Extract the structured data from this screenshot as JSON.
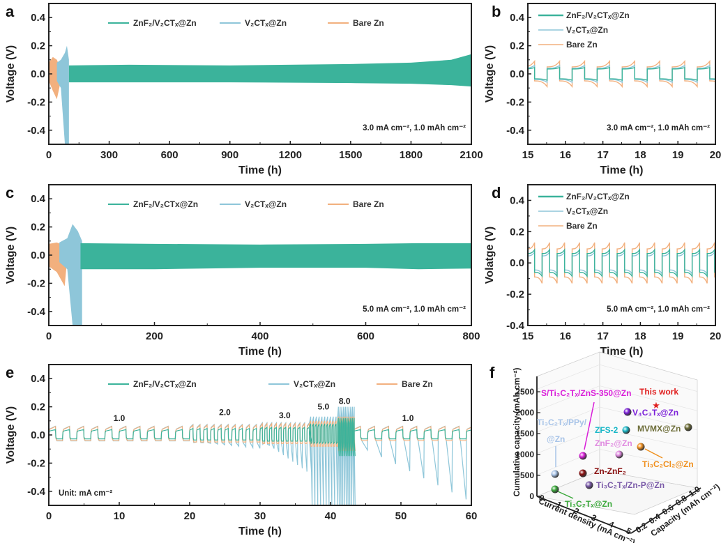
{
  "colors": {
    "znf2": "#3bb39b",
    "v2ct": "#8ec6d9",
    "bare": "#f2b07e",
    "axis": "#222222"
  },
  "chart_data": [
    {
      "panel": "a",
      "type": "line",
      "xlabel": "Time (h)",
      "ylabel": "Voltage (V)",
      "xlim": [
        0,
        2100
      ],
      "ylim": [
        -0.5,
        0.5
      ],
      "xticks": [
        "0",
        "300",
        "600",
        "900",
        "1200",
        "1500",
        "1800",
        "2100"
      ],
      "yticks": [
        "-0.4",
        "-0.2",
        "0.0",
        "0.2",
        "0.4"
      ],
      "legend_position": "top",
      "annotation": "3.0 mA cm⁻², 1.0 mAh cm⁻²",
      "series": [
        {
          "name": "ZnF₂/V₂CTₓ@Zn",
          "key": "znf2",
          "kind": "band",
          "x": [
            100,
            400,
            900,
            1500,
            1800,
            2000,
            2100
          ],
          "upper": [
            0.06,
            0.065,
            0.06,
            0.07,
            0.08,
            0.1,
            0.14
          ],
          "lower": [
            -0.06,
            -0.06,
            -0.06,
            -0.065,
            -0.07,
            -0.08,
            -0.09
          ]
        },
        {
          "name": "V₂CTₓ@Zn",
          "key": "v2ct",
          "kind": "band",
          "x": [
            40,
            60,
            80,
            90,
            100
          ],
          "upper": [
            0.08,
            0.1,
            0.15,
            0.2,
            0.1
          ],
          "lower": [
            -0.05,
            -0.1,
            -0.5,
            -0.5,
            -0.5
          ]
        },
        {
          "name": "Bare Zn",
          "key": "bare",
          "kind": "band",
          "x": [
            0,
            20,
            40,
            55,
            60
          ],
          "upper": [
            0.08,
            0.12,
            0.1,
            0.05,
            0.02
          ],
          "lower": [
            -0.05,
            -0.12,
            -0.18,
            -0.08,
            -0.02
          ]
        }
      ]
    },
    {
      "panel": "b",
      "type": "line",
      "xlabel": "Time (h)",
      "ylabel": "Voltage (V)",
      "xlim": [
        15,
        20
      ],
      "ylim": [
        -0.5,
        0.5
      ],
      "xticks": [
        "15",
        "16",
        "17",
        "18",
        "19",
        "20"
      ],
      "yticks": [
        "-0.4",
        "-0.2",
        "0.0",
        "0.2",
        "0.4"
      ],
      "legend_position": "top-left",
      "annotation": "3.0 mA cm⁻², 1.0 mAh cm⁻²",
      "period_h": 0.667,
      "series": [
        {
          "name": "ZnF₂/V₂CTₓ@Zn",
          "key": "znf2",
          "plateau": 0.035,
          "peak": 0.045
        },
        {
          "name": "V₂CTₓ@Zn",
          "key": "v2ct",
          "plateau": 0.04,
          "peak": 0.06
        },
        {
          "name": "Bare Zn",
          "key": "bare",
          "plateau": 0.05,
          "peak": 0.09
        }
      ]
    },
    {
      "panel": "c",
      "type": "line",
      "xlabel": "Time (h)",
      "ylabel": "Voltage (V)",
      "xlim": [
        0,
        800
      ],
      "ylim": [
        -0.5,
        0.5
      ],
      "xticks": [
        "0",
        "200",
        "400",
        "600",
        "800"
      ],
      "yticks": [
        "-0.4",
        "-0.2",
        "0.0",
        "0.2",
        "0.4"
      ],
      "legend_position": "top",
      "annotation": "5.0 mA cm⁻², 1.0 mAh cm⁻²",
      "series": [
        {
          "name": "ZnF₂/V₂CTx@Zn",
          "key": "znf2",
          "kind": "band",
          "x": [
            60,
            200,
            400,
            600,
            700,
            800
          ],
          "upper": [
            0.085,
            0.08,
            0.075,
            0.08,
            0.085,
            0.085
          ],
          "lower": [
            -0.1,
            -0.1,
            -0.09,
            -0.09,
            -0.1,
            -0.095
          ]
        },
        {
          "name": "V₂CTₓ@Zn",
          "key": "v2ct",
          "kind": "band",
          "x": [
            20,
            35,
            45,
            55,
            63
          ],
          "upper": [
            0.09,
            0.12,
            0.22,
            0.17,
            0.1
          ],
          "lower": [
            -0.05,
            -0.1,
            -0.5,
            -0.5,
            -0.5
          ]
        },
        {
          "name": "Bare Zn",
          "key": "bare",
          "kind": "band",
          "x": [
            0,
            15,
            30,
            35
          ],
          "upper": [
            0.08,
            0.09,
            0.07,
            0.02
          ],
          "lower": [
            -0.08,
            -0.12,
            -0.22,
            -0.02
          ]
        }
      ]
    },
    {
      "panel": "d",
      "type": "line",
      "xlabel": "Time (h)",
      "ylabel": "Volatge (V)",
      "xlim": [
        15,
        20
      ],
      "ylim": [
        -0.4,
        0.5
      ],
      "xticks": [
        "15",
        "16",
        "17",
        "18",
        "19",
        "20"
      ],
      "yticks": [
        "-0.4",
        "-0.2",
        "0.0",
        "0.2",
        "0.4"
      ],
      "legend_position": "top-left",
      "annotation": "5.0 mA cm⁻², 1.0 mAh cm⁻²",
      "period_h": 0.4,
      "series": [
        {
          "name": "ZnF₂/V₂CTₓ@Zn",
          "key": "znf2",
          "plateau": 0.06,
          "peak": 0.085
        },
        {
          "name": "V₂CTₓ@Zn",
          "key": "v2ct",
          "plateau": 0.045,
          "peak": 0.07
        },
        {
          "name": "Bare Zn",
          "key": "bare",
          "plateau": 0.09,
          "peak": 0.13
        }
      ]
    },
    {
      "panel": "e",
      "type": "line",
      "xlabel": "Time (h)",
      "ylabel": "Voltage (V)",
      "xlim": [
        0,
        60
      ],
      "ylim": [
        -0.5,
        0.5
      ],
      "xticks": [
        "0",
        "10",
        "20",
        "30",
        "40",
        "50",
        "60"
      ],
      "yticks": [
        "-0.4",
        "-0.2",
        "0.0",
        "0.2",
        "0.4"
      ],
      "legend_position": "top",
      "annotation": "Unit: mA cm⁻²",
      "rate_labels": [
        {
          "text": "1.0",
          "x": 10,
          "y": 0.1
        },
        {
          "text": "2.0",
          "x": 25,
          "y": 0.14
        },
        {
          "text": "3.0",
          "x": 33.5,
          "y": 0.12
        },
        {
          "text": "5.0",
          "x": 39,
          "y": 0.18
        },
        {
          "text": "8.0",
          "x": 42,
          "y": 0.22
        },
        {
          "text": "1.0",
          "x": 51,
          "y": 0.1
        }
      ],
      "segments": [
        {
          "rate": 1.0,
          "start": 0,
          "end": 20,
          "period": 2.0
        },
        {
          "rate": 2.0,
          "start": 20,
          "end": 30,
          "period": 1.0
        },
        {
          "rate": 3.0,
          "start": 30,
          "end": 37,
          "period": 0.667
        },
        {
          "rate": 5.0,
          "start": 37,
          "end": 41,
          "period": 0.4
        },
        {
          "rate": 8.0,
          "start": 41,
          "end": 43.3,
          "period": 0.25
        },
        {
          "rate": 1.0,
          "start": 43.3,
          "end": 60,
          "period": 2.0
        }
      ],
      "series": [
        {
          "name": "ZnF₂/V₂CTₓ@Zn",
          "key": "znf2"
        },
        {
          "name": "V₂CTₓ@Zn",
          "key": "v2ct"
        },
        {
          "name": "Bare Zn",
          "key": "bare"
        }
      ]
    },
    {
      "panel": "f",
      "type": "scatter",
      "title": "",
      "xlabel": "Current density (mA cm⁻²)",
      "ylabel": "Capacity (mAh cm⁻²)",
      "zlabel": "Cumulative capacity (mAh cm⁻²)",
      "xticks": [
        "0",
        "1",
        "2",
        "3",
        "4",
        "5"
      ],
      "yticks": [
        "0.2",
        "0.4",
        "0.6",
        "0.8",
        "1.0"
      ],
      "zticks": [
        "0",
        "500",
        "1000",
        "1500",
        "2000",
        "2500"
      ],
      "points": [
        {
          "label": "This work",
          "marker": "star",
          "color": "#e02020",
          "current": 5.0,
          "capacity": 1.0,
          "cumulative": 4000
        },
        {
          "label": "V₄C₃Tₓ@Zn",
          "color": "#7b1fd8",
          "current": 5.0,
          "capacity": 1.0,
          "cumulative": 2000
        },
        {
          "label": "S/Ti₃C₂Tₓ/ZnS-350@Zn",
          "color": "#d91ed9",
          "current": 2.0,
          "capacity": 1.0,
          "cumulative": 1000
        },
        {
          "label": "Ti₃C₂Tₓ/PPy@Zn",
          "color": "#a8c4e8",
          "current": 1.0,
          "capacity": 1.0,
          "cumulative": 500
        },
        {
          "label": "ZFS-2",
          "color": "#1ab8c8",
          "current": 4.0,
          "capacity": 1.0,
          "cumulative": 1500
        },
        {
          "label": "MVMX@Zn",
          "color": "#6e6e3a",
          "current": 5.0,
          "capacity": 1.0,
          "cumulative": 1500
        },
        {
          "label": "ZnF₂@Zn",
          "color": "#e08ae0",
          "current": 5.0,
          "capacity": 1.0,
          "cumulative": 1000
        },
        {
          "label": "Ti₃C₂Cl₂@Zn",
          "color": "#f0901e",
          "current": 4.0,
          "capacity": 1.0,
          "cumulative": 1200
        },
        {
          "label": "Zn-ZnF₂",
          "color": "#8a1010",
          "current": 2.0,
          "capacity": 1.0,
          "cumulative": 550
        },
        {
          "label": "Ti₃C₂Tₓ/Zn-P@Zn",
          "color": "#7a5aa8",
          "current": 2.0,
          "capacity": 0.5,
          "cumulative": 200
        },
        {
          "label": "Ti₃C₂Tₓ@Zn",
          "color": "#3aa83a",
          "current": 1.0,
          "capacity": 0.5,
          "cumulative": 200
        }
      ]
    }
  ],
  "panel_labels": [
    "a",
    "b",
    "c",
    "d",
    "e",
    "f"
  ]
}
